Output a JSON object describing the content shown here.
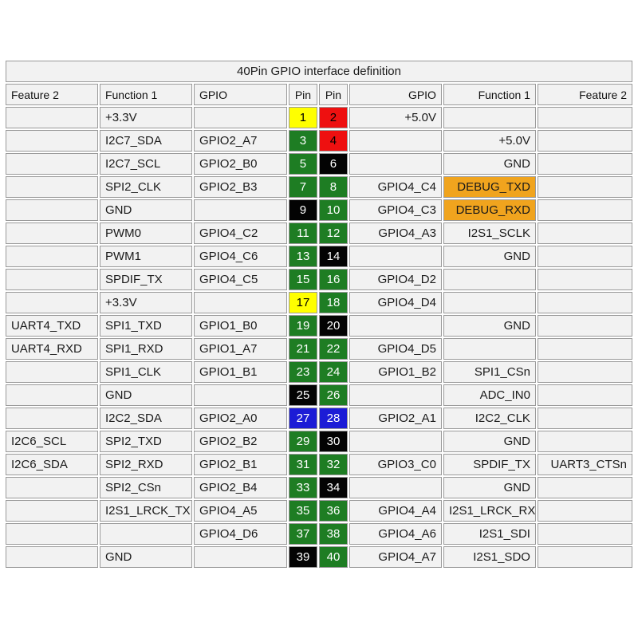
{
  "title": "40Pin GPIO interface definition",
  "columns": {
    "left_feature": "Feature 2",
    "left_function": "Function 1",
    "left_gpio": "GPIO",
    "left_pin": "Pin",
    "right_pin": "Pin",
    "right_gpio": "GPIO",
    "right_function": "Function 1",
    "right_feature": "Feature 2"
  },
  "colors": {
    "green": "#1e7d23",
    "red": "#ee1010",
    "yellow": "#ffff00",
    "black": "#030303",
    "blue": "#1c1cd6",
    "orange": "#f0a41e",
    "cell_bg": "#f2f2f2",
    "border": "#9a9a9a",
    "pin_text_light": "#ffffff",
    "pin_text_dark": "#000000"
  },
  "rows": [
    {
      "l_feature": "",
      "l_function": "+3.3V",
      "l_gpio": "",
      "l_pin": "1",
      "l_pin_color": "yellow",
      "r_pin": "2",
      "r_pin_color": "red",
      "r_gpio": "+5.0V",
      "r_function": "",
      "r_feature": ""
    },
    {
      "l_feature": "",
      "l_function": "I2C7_SDA",
      "l_gpio": "GPIO2_A7",
      "l_pin": "3",
      "l_pin_color": "green",
      "r_pin": "4",
      "r_pin_color": "red",
      "r_gpio": "",
      "r_function": "+5.0V",
      "r_feature": ""
    },
    {
      "l_feature": "",
      "l_function": "I2C7_SCL",
      "l_gpio": "GPIO2_B0",
      "l_pin": "5",
      "l_pin_color": "green",
      "r_pin": "6",
      "r_pin_color": "black",
      "r_gpio": "",
      "r_function": "GND",
      "r_feature": ""
    },
    {
      "l_feature": "",
      "l_function": "SPI2_CLK",
      "l_gpio": "GPIO2_B3",
      "l_pin": "7",
      "l_pin_color": "green",
      "r_pin": "8",
      "r_pin_color": "green",
      "r_gpio": "GPIO4_C4",
      "r_function": "DEBUG_TXD",
      "r_function_bg": "orange",
      "r_feature": ""
    },
    {
      "l_feature": "",
      "l_function": "GND",
      "l_gpio": "",
      "l_pin": "9",
      "l_pin_color": "black",
      "r_pin": "10",
      "r_pin_color": "green",
      "r_gpio": "GPIO4_C3",
      "r_function": "DEBUG_RXD",
      "r_function_bg": "orange",
      "r_feature": ""
    },
    {
      "l_feature": "",
      "l_function": "PWM0",
      "l_gpio": "GPIO4_C2",
      "l_pin": "11",
      "l_pin_color": "green",
      "r_pin": "12",
      "r_pin_color": "green",
      "r_gpio": "GPIO4_A3",
      "r_function": "I2S1_SCLK",
      "r_feature": ""
    },
    {
      "l_feature": "",
      "l_function": "PWM1",
      "l_gpio": "GPIO4_C6",
      "l_pin": "13",
      "l_pin_color": "green",
      "r_pin": "14",
      "r_pin_color": "black",
      "r_gpio": "",
      "r_function": "GND",
      "r_feature": ""
    },
    {
      "l_feature": "",
      "l_function": "SPDIF_TX",
      "l_gpio": "GPIO4_C5",
      "l_pin": "15",
      "l_pin_color": "green",
      "r_pin": "16",
      "r_pin_color": "green",
      "r_gpio": "GPIO4_D2",
      "r_function": "",
      "r_feature": ""
    },
    {
      "l_feature": "",
      "l_function": "+3.3V",
      "l_gpio": "",
      "l_pin": "17",
      "l_pin_color": "yellow",
      "r_pin": "18",
      "r_pin_color": "green",
      "r_gpio": "GPIO4_D4",
      "r_function": "",
      "r_feature": ""
    },
    {
      "l_feature": "UART4_TXD",
      "l_function": "SPI1_TXD",
      "l_gpio": "GPIO1_B0",
      "l_pin": "19",
      "l_pin_color": "green",
      "r_pin": "20",
      "r_pin_color": "black",
      "r_gpio": "",
      "r_function": "GND",
      "r_feature": ""
    },
    {
      "l_feature": "UART4_RXD",
      "l_function": "SPI1_RXD",
      "l_gpio": "GPIO1_A7",
      "l_pin": "21",
      "l_pin_color": "green",
      "r_pin": "22",
      "r_pin_color": "green",
      "r_gpio": "GPIO4_D5",
      "r_function": "",
      "r_feature": ""
    },
    {
      "l_feature": "",
      "l_function": "SPI1_CLK",
      "l_gpio": "GPIO1_B1",
      "l_pin": "23",
      "l_pin_color": "green",
      "r_pin": "24",
      "r_pin_color": "green",
      "r_gpio": "GPIO1_B2",
      "r_function": "SPI1_CSn",
      "r_feature": ""
    },
    {
      "l_feature": "",
      "l_function": "GND",
      "l_gpio": "",
      "l_pin": "25",
      "l_pin_color": "black",
      "r_pin": "26",
      "r_pin_color": "green",
      "r_gpio": "",
      "r_function": "ADC_IN0",
      "r_feature": ""
    },
    {
      "l_feature": "",
      "l_function": "I2C2_SDA",
      "l_gpio": "GPIO2_A0",
      "l_pin": "27",
      "l_pin_color": "blue",
      "r_pin": "28",
      "r_pin_color": "blue",
      "r_gpio": "GPIO2_A1",
      "r_function": "I2C2_CLK",
      "r_feature": ""
    },
    {
      "l_feature": "I2C6_SCL",
      "l_function": "SPI2_TXD",
      "l_gpio": "GPIO2_B2",
      "l_pin": "29",
      "l_pin_color": "green",
      "r_pin": "30",
      "r_pin_color": "black",
      "r_gpio": "",
      "r_function": "GND",
      "r_feature": ""
    },
    {
      "l_feature": "I2C6_SDA",
      "l_function": "SPI2_RXD",
      "l_gpio": "GPIO2_B1",
      "l_pin": "31",
      "l_pin_color": "green",
      "r_pin": "32",
      "r_pin_color": "green",
      "r_gpio": "GPIO3_C0",
      "r_function": "SPDIF_TX",
      "r_feature": "UART3_CTSn"
    },
    {
      "l_feature": "",
      "l_function": "SPI2_CSn",
      "l_gpio": "GPIO2_B4",
      "l_pin": "33",
      "l_pin_color": "green",
      "r_pin": "34",
      "r_pin_color": "black",
      "r_gpio": "",
      "r_function": "GND",
      "r_feature": ""
    },
    {
      "l_feature": "",
      "l_function": "I2S1_LRCK_TX",
      "l_gpio": "GPIO4_A5",
      "l_pin": "35",
      "l_pin_color": "green",
      "r_pin": "36",
      "r_pin_color": "green",
      "r_gpio": "GPIO4_A4",
      "r_function": "I2S1_LRCK_RX",
      "r_feature": ""
    },
    {
      "l_feature": "",
      "l_function": "",
      "l_gpio": "GPIO4_D6",
      "l_pin": "37",
      "l_pin_color": "green",
      "r_pin": "38",
      "r_pin_color": "green",
      "r_gpio": "GPIO4_A6",
      "r_function": "I2S1_SDI",
      "r_feature": ""
    },
    {
      "l_feature": "",
      "l_function": "GND",
      "l_gpio": "",
      "l_pin": "39",
      "l_pin_color": "black",
      "r_pin": "40",
      "r_pin_color": "green",
      "r_gpio": "GPIO4_A7",
      "r_function": "I2S1_SDO",
      "r_feature": ""
    }
  ]
}
